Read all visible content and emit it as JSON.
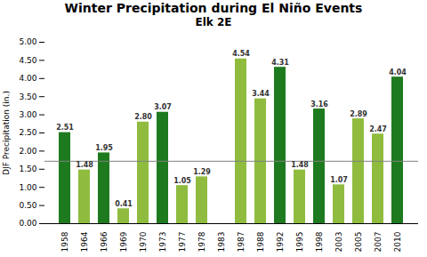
{
  "chart_data": {
    "type": "bar",
    "title": "Winter Precipitation during El Niño Events",
    "subtitle": "Elk 2E",
    "ylabel": "DJF Precipitation (in.)",
    "categories": [
      "1958",
      "1964",
      "1966",
      "1969",
      "1970",
      "1973",
      "1977",
      "1978",
      "1983",
      "1987",
      "1988",
      "1992",
      "1995",
      "1998",
      "2003",
      "2005",
      "2007",
      "2010"
    ],
    "values": [
      2.51,
      1.48,
      1.95,
      0.41,
      2.8,
      3.07,
      1.05,
      1.29,
      0.0,
      4.54,
      3.44,
      4.31,
      1.48,
      3.16,
      1.07,
      2.89,
      2.47,
      4.04
    ],
    "value_labels": [
      "2.51",
      "1.48",
      "1.95",
      "0.41",
      "2.80",
      "3.07",
      "1.05",
      "1.29",
      null,
      "4.54",
      "3.44",
      "4.31",
      "1.48",
      "3.16",
      "1.07",
      "2.89",
      "2.47",
      "4.04"
    ],
    "colors": [
      "#1e7a1e",
      "#8fbc3f",
      "#1e7a1e",
      "#8fbc3f",
      "#8fbc3f",
      "#1e7a1e",
      "#8fbc3f",
      "#8fbc3f",
      "#8fbc3f",
      "#8fbc3f",
      "#8fbc3f",
      "#1e7a1e",
      "#8fbc3f",
      "#1e7a1e",
      "#8fbc3f",
      "#8fbc3f",
      "#8fbc3f",
      "#1e7a1e"
    ],
    "data_labels": true,
    "reference_line": {
      "value": 1.72,
      "color": "#808080"
    },
    "ylim": [
      0.0,
      5.0
    ],
    "yticks": [
      {
        "value": 0.0,
        "label": "0.00"
      },
      {
        "value": 0.5,
        "label": "0.50"
      },
      {
        "value": 1.0,
        "label": "1.00"
      },
      {
        "value": 1.5,
        "label": "1.50"
      },
      {
        "value": 2.0,
        "label": "2.00"
      },
      {
        "value": 2.5,
        "label": "2.50"
      },
      {
        "value": 3.0,
        "label": "3.00"
      },
      {
        "value": 3.5,
        "label": "3.50"
      },
      {
        "value": 4.0,
        "label": "4.00"
      },
      {
        "value": 4.5,
        "label": "4.50"
      },
      {
        "value": 5.0,
        "label": "5.00"
      }
    ],
    "grid": false
  }
}
